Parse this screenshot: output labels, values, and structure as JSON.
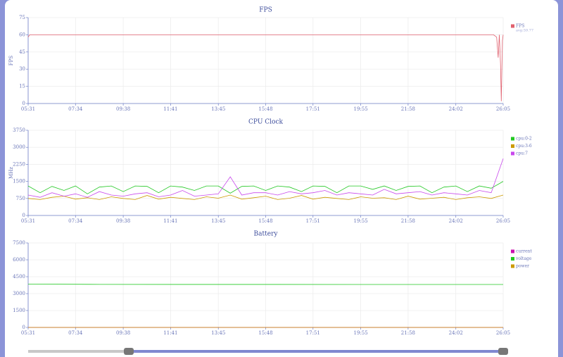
{
  "chart_data": [
    {
      "type": "line",
      "title": "FPS",
      "ylabel": "FPS",
      "grid": true,
      "xlim": [
        331,
        1565
      ],
      "xticks": [
        {
          "value": 331,
          "label": "05:31"
        },
        {
          "value": 454,
          "label": "07:34"
        },
        {
          "value": 578,
          "label": "09:38"
        },
        {
          "value": 701,
          "label": "11:41"
        },
        {
          "value": 825,
          "label": "13:45"
        },
        {
          "value": 948,
          "label": "15:48"
        },
        {
          "value": 1071,
          "label": "17:51"
        },
        {
          "value": 1195,
          "label": "19:55"
        },
        {
          "value": 1318,
          "label": "21:58"
        },
        {
          "value": 1442,
          "label": "24:02"
        },
        {
          "value": 1565,
          "label": "26:05"
        }
      ],
      "ylim": [
        0,
        75
      ],
      "yticks": [
        0,
        15,
        30,
        45,
        60,
        75
      ],
      "x": [
        331,
        335,
        338,
        600,
        640,
        1100,
        1350,
        1450,
        1540,
        1548,
        1552,
        1555,
        1558,
        1560,
        1563,
        1565
      ],
      "series": [
        {
          "name": "FPS",
          "note": "avg:59.77",
          "color": "#e0606e",
          "values": [
            58,
            60,
            60,
            60,
            60,
            60,
            60,
            60,
            60,
            58,
            40,
            60,
            35,
            2,
            55,
            60
          ]
        }
      ]
    },
    {
      "type": "line",
      "title": "CPU Clock",
      "ylabel": "MHz",
      "grid": true,
      "xlim": [
        331,
        1565
      ],
      "xticks": [
        {
          "value": 331,
          "label": "05:31"
        },
        {
          "value": 454,
          "label": "07:34"
        },
        {
          "value": 578,
          "label": "09:38"
        },
        {
          "value": 701,
          "label": "11:41"
        },
        {
          "value": 825,
          "label": "13:45"
        },
        {
          "value": 948,
          "label": "15:48"
        },
        {
          "value": 1071,
          "label": "17:51"
        },
        {
          "value": 1195,
          "label": "19:55"
        },
        {
          "value": 1318,
          "label": "21:58"
        },
        {
          "value": 1442,
          "label": "24:02"
        },
        {
          "value": 1565,
          "label": "26:05"
        }
      ],
      "ylim": [
        0,
        3750
      ],
      "yticks": [
        0,
        750,
        1500,
        2250,
        3000,
        3750
      ],
      "x": [
        331,
        362,
        393,
        424,
        454,
        485,
        516,
        547,
        578,
        609,
        640,
        670,
        701,
        732,
        763,
        794,
        825,
        856,
        886,
        917,
        948,
        979,
        1010,
        1041,
        1071,
        1102,
        1133,
        1164,
        1195,
        1226,
        1256,
        1287,
        1318,
        1349,
        1380,
        1411,
        1442,
        1472,
        1503,
        1534,
        1565
      ],
      "series": [
        {
          "name": "cpu:0-2",
          "color": "#22c822",
          "values": [
            1300,
            1000,
            1280,
            1100,
            1300,
            950,
            1250,
            1300,
            1050,
            1300,
            1280,
            1000,
            1300,
            1250,
            1100,
            1300,
            1300,
            980,
            1280,
            1300,
            1100,
            1300,
            1250,
            1050,
            1300,
            1280,
            1000,
            1300,
            1300,
            1150,
            1300,
            1100,
            1280,
            1300,
            1000,
            1250,
            1300,
            1050,
            1300,
            1200,
            1500
          ]
        },
        {
          "name": "cpu:3-6",
          "color": "#cc9a00",
          "values": [
            750,
            700,
            800,
            850,
            720,
            780,
            700,
            820,
            750,
            700,
            880,
            720,
            800,
            750,
            700,
            820,
            760,
            900,
            720,
            780,
            850,
            700,
            760,
            880,
            720,
            800,
            750,
            700,
            820,
            760,
            780,
            700,
            850,
            720,
            760,
            800,
            700,
            780,
            820,
            750,
            900
          ]
        },
        {
          "name": "cpu:7",
          "color": "#c848ec",
          "values": [
            900,
            800,
            1000,
            850,
            950,
            800,
            1050,
            900,
            850,
            950,
            1000,
            820,
            900,
            1100,
            850,
            900,
            950,
            1700,
            900,
            1000,
            1000,
            900,
            1050,
            950,
            1000,
            1100,
            900,
            1000,
            950,
            900,
            1150,
            950,
            1000,
            1050,
            900,
            1000,
            950,
            900,
            1100,
            1000,
            2500
          ]
        }
      ]
    },
    {
      "type": "line",
      "title": "Battery",
      "grid": true,
      "xlim": [
        331,
        1565
      ],
      "xticks": [
        {
          "value": 331,
          "label": "05:31"
        },
        {
          "value": 454,
          "label": "07:34"
        },
        {
          "value": 578,
          "label": "09:38"
        },
        {
          "value": 701,
          "label": "11:41"
        },
        {
          "value": 825,
          "label": "13:45"
        },
        {
          "value": 948,
          "label": "15:48"
        },
        {
          "value": 1071,
          "label": "17:51"
        },
        {
          "value": 1195,
          "label": "19:55"
        },
        {
          "value": 1318,
          "label": "21:58"
        },
        {
          "value": 1442,
          "label": "24:02"
        },
        {
          "value": 1565,
          "label": "26:05"
        }
      ],
      "ylim": [
        0,
        7500
      ],
      "yticks": [
        0,
        1500,
        3000,
        4500,
        6000,
        7500
      ],
      "x": [
        331,
        520,
        1565
      ],
      "series": [
        {
          "name": "current",
          "color": "#cc10b0",
          "values": [
            0,
            0,
            0
          ]
        },
        {
          "name": "voltage",
          "color": "#22c822",
          "values": [
            3850,
            3820,
            3810
          ]
        },
        {
          "name": "power",
          "color": "#cc9a00",
          "values": [
            0,
            0,
            0
          ]
        }
      ]
    }
  ]
}
